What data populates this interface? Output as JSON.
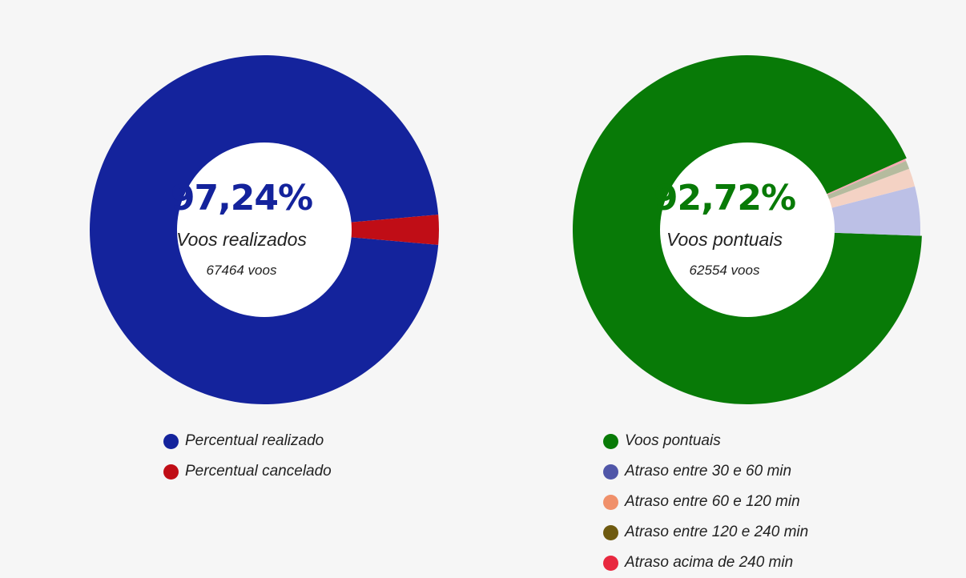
{
  "chart_data": [
    {
      "type": "pie",
      "center": {
        "value": "97,24%",
        "label": "Voos realizados",
        "count": "67464 voos"
      },
      "accent_color": "#14239c",
      "slices": [
        {
          "name": "Percentual realizado",
          "value": 97.24,
          "color": "#14239c"
        },
        {
          "name": "Percentual cancelado",
          "value": 2.76,
          "color": "#c00d16"
        }
      ]
    },
    {
      "type": "pie",
      "center": {
        "value": "92,72%",
        "label": "Voos pontuais",
        "count": "62554 voos"
      },
      "accent_color": "#087a07",
      "slices": [
        {
          "name": "Voos pontuais",
          "value": 92.72,
          "color": "#087a07"
        },
        {
          "name": "Atraso entre 30 e 60 min",
          "value": 4.6,
          "color": "#bcc0e6",
          "legend_color": "#5056a8"
        },
        {
          "name": "Atraso entre 60 e 120 min",
          "value": 1.7,
          "color": "#f4d2c4",
          "legend_color": "#f0906a"
        },
        {
          "name": "Atraso entre 120 e 240 min",
          "value": 0.78,
          "color": "#b5bb9e",
          "legend_color": "#6e5a10"
        },
        {
          "name": "Atraso acima de 240 min",
          "value": 0.2,
          "color": "#f7a9b2",
          "legend_color": "#e8283f"
        }
      ]
    }
  ]
}
